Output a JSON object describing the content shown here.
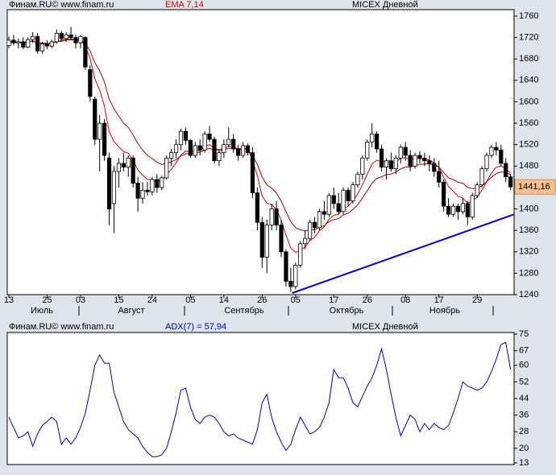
{
  "chart_data": [
    {
      "type": "candlestick",
      "source": "Финам.RU©  www.finam.ru",
      "indicator": "EMA 7,14",
      "instrument": "MICEX Дневной",
      "categories": [
        "13",
        null,
        null,
        null,
        null,
        null,
        null,
        null,
        "25",
        null,
        null,
        null,
        null,
        null,
        null,
        "03",
        null,
        null,
        null,
        null,
        null,
        null,
        null,
        "15",
        null,
        null,
        null,
        null,
        null,
        null,
        "24",
        null,
        null,
        null,
        null,
        null,
        null,
        null,
        "05",
        null,
        null,
        null,
        null,
        null,
        null,
        "14",
        null,
        null,
        null,
        null,
        null,
        null,
        null,
        "26",
        null,
        null,
        null,
        null,
        null,
        null,
        "05",
        null,
        null,
        null,
        null,
        null,
        null,
        null,
        "17",
        null,
        null,
        null,
        null,
        null,
        null,
        "26",
        null,
        null,
        null,
        null,
        null,
        null,
        null,
        "08",
        null,
        null,
        null,
        null,
        null,
        null,
        "17",
        null,
        null,
        null,
        null,
        null,
        null,
        null,
        "29",
        null,
        null,
        null,
        null,
        null,
        null,
        null
      ],
      "months": [
        "Июль",
        "Август",
        "Сентябрь",
        "Октябрь",
        "Ноябрь"
      ],
      "up_color": "#ffffff",
      "down_color": "#000000",
      "ohlc": [
        [
          1705,
          1722,
          1700,
          1715
        ],
        [
          1715,
          1725,
          1705,
          1710
        ],
        [
          1710,
          1718,
          1700,
          1712
        ],
        [
          1712,
          1720,
          1698,
          1702
        ],
        [
          1702,
          1720,
          1700,
          1716
        ],
        [
          1716,
          1730,
          1710,
          1722
        ],
        [
          1722,
          1728,
          1690,
          1695
        ],
        [
          1695,
          1712,
          1690,
          1708
        ],
        [
          1708,
          1715,
          1698,
          1704
        ],
        [
          1704,
          1716,
          1700,
          1712
        ],
        [
          1712,
          1735,
          1708,
          1728
        ],
        [
          1728,
          1732,
          1712,
          1718
        ],
        [
          1718,
          1730,
          1712,
          1725
        ],
        [
          1725,
          1740,
          1715,
          1720
        ],
        [
          1720,
          1726,
          1700,
          1710
        ],
        [
          1710,
          1725,
          1700,
          1722
        ],
        [
          1720,
          1722,
          1660,
          1665
        ],
        [
          1660,
          1668,
          1600,
          1610
        ],
        [
          1605,
          1610,
          1520,
          1530
        ],
        [
          1530,
          1575,
          1470,
          1560
        ],
        [
          1560,
          1568,
          1490,
          1500
        ],
        [
          1495,
          1505,
          1370,
          1400
        ],
        [
          1410,
          1480,
          1355,
          1470
        ],
        [
          1470,
          1495,
          1440,
          1485
        ],
        [
          1485,
          1505,
          1470,
          1478
        ],
        [
          1478,
          1500,
          1460,
          1495
        ],
        [
          1495,
          1500,
          1440,
          1448
        ],
        [
          1448,
          1460,
          1395,
          1420
        ],
        [
          1420,
          1450,
          1410,
          1435
        ],
        [
          1435,
          1450,
          1425,
          1432
        ],
        [
          1432,
          1460,
          1425,
          1455
        ],
        [
          1455,
          1465,
          1430,
          1440
        ],
        [
          1440,
          1462,
          1435,
          1458
        ],
        [
          1458,
          1500,
          1455,
          1495
        ],
        [
          1495,
          1512,
          1480,
          1505
        ],
        [
          1505,
          1530,
          1495,
          1520
        ],
        [
          1520,
          1550,
          1510,
          1545
        ],
        [
          1545,
          1552,
          1520,
          1528
        ],
        [
          1528,
          1530,
          1495,
          1500
        ],
        [
          1500,
          1525,
          1495,
          1518
        ],
        [
          1518,
          1530,
          1500,
          1510
        ],
        [
          1510,
          1545,
          1505,
          1540
        ],
        [
          1540,
          1555,
          1525,
          1530
        ],
        [
          1530,
          1535,
          1485,
          1490
        ],
        [
          1490,
          1510,
          1480,
          1505
        ],
        [
          1505,
          1530,
          1495,
          1520
        ],
        [
          1520,
          1552,
          1515,
          1530
        ],
        [
          1530,
          1540,
          1505,
          1512
        ],
        [
          1512,
          1520,
          1490,
          1500
        ],
        [
          1500,
          1525,
          1495,
          1518
        ],
        [
          1518,
          1522,
          1500,
          1505
        ],
        [
          1505,
          1515,
          1420,
          1430
        ],
        [
          1430,
          1440,
          1360,
          1375
        ],
        [
          1375,
          1385,
          1290,
          1310
        ],
        [
          1310,
          1380,
          1280,
          1370
        ],
        [
          1370,
          1410,
          1360,
          1400
        ],
        [
          1400,
          1415,
          1360,
          1370
        ],
        [
          1370,
          1380,
          1310,
          1320
        ],
        [
          1320,
          1325,
          1255,
          1265
        ],
        [
          1265,
          1290,
          1245,
          1255
        ],
        [
          1255,
          1300,
          1250,
          1295
        ],
        [
          1295,
          1340,
          1290,
          1335
        ],
        [
          1335,
          1360,
          1325,
          1345
        ],
        [
          1345,
          1380,
          1340,
          1375
        ],
        [
          1375,
          1385,
          1355,
          1365
        ],
        [
          1365,
          1400,
          1360,
          1395
        ],
        [
          1395,
          1415,
          1380,
          1390
        ],
        [
          1390,
          1430,
          1385,
          1425
        ],
        [
          1425,
          1440,
          1400,
          1410
        ],
        [
          1410,
          1430,
          1390,
          1395
        ],
        [
          1395,
          1440,
          1390,
          1435
        ],
        [
          1435,
          1440,
          1405,
          1415
        ],
        [
          1415,
          1450,
          1410,
          1445
        ],
        [
          1445,
          1470,
          1440,
          1465
        ],
        [
          1465,
          1500,
          1455,
          1495
        ],
        [
          1495,
          1530,
          1490,
          1525
        ],
        [
          1525,
          1560,
          1515,
          1540
        ],
        [
          1540,
          1545,
          1505,
          1512
        ],
        [
          1512,
          1520,
          1470,
          1478
        ],
        [
          1478,
          1495,
          1455,
          1490
        ],
        [
          1490,
          1505,
          1470,
          1475
        ],
        [
          1475,
          1500,
          1465,
          1495
        ],
        [
          1495,
          1520,
          1485,
          1515
        ],
        [
          1515,
          1525,
          1490,
          1500
        ],
        [
          1500,
          1510,
          1470,
          1480
        ],
        [
          1480,
          1505,
          1475,
          1500
        ],
        [
          1500,
          1508,
          1485,
          1495
        ],
        [
          1495,
          1505,
          1480,
          1490
        ],
        [
          1490,
          1500,
          1470,
          1485
        ],
        [
          1485,
          1495,
          1460,
          1470
        ],
        [
          1470,
          1490,
          1440,
          1450
        ],
        [
          1450,
          1455,
          1395,
          1405
        ],
        [
          1405,
          1420,
          1385,
          1390
        ],
        [
          1390,
          1410,
          1385,
          1405
        ],
        [
          1405,
          1410,
          1380,
          1395
        ],
        [
          1395,
          1420,
          1390,
          1410
        ],
        [
          1410,
          1415,
          1370,
          1385
        ],
        [
          1385,
          1430,
          1380,
          1425
        ],
        [
          1425,
          1450,
          1420,
          1445
        ],
        [
          1445,
          1480,
          1440,
          1475
        ],
        [
          1475,
          1505,
          1470,
          1500
        ],
        [
          1500,
          1520,
          1495,
          1515
        ],
        [
          1515,
          1525,
          1500,
          1510
        ],
        [
          1510,
          1520,
          1480,
          1485
        ],
        [
          1485,
          1495,
          1450,
          1460
        ],
        [
          1460,
          1465,
          1435,
          1441.16
        ]
      ],
      "series": [
        {
          "color": "#dd0000",
          "values": [
            1712,
            1711,
            1711,
            1709,
            1711,
            1714,
            1709,
            1709,
            1708,
            1709,
            1714,
            1715,
            1717,
            1718,
            1716,
            1717,
            1704,
            1681,
            1643,
            1622,
            1592,
            1544,
            1526,
            1516,
            1507,
            1504,
            1490,
            1473,
            1463,
            1455,
            1455,
            1451,
            1453,
            1464,
            1474,
            1486,
            1501,
            1508,
            1506,
            1509,
            1509,
            1517,
            1520,
            1513,
            1511,
            1513,
            1517,
            1516,
            1512,
            1514,
            1512,
            1491,
            1462,
            1424,
            1411,
            1408,
            1399,
            1379,
            1351,
            1327,
            1319,
            1323,
            1329,
            1341,
            1347,
            1359,
            1367,
            1381,
            1388,
            1390,
            1401,
            1405,
            1415,
            1428,
            1445,
            1465,
            1484,
            1491,
            1488,
            1489,
            1485,
            1488,
            1495,
            1496,
            1492,
            1494,
            1494,
            1493,
            1491,
            1486,
            1477,
            1459,
            1442,
            1433,
            1424,
            1420,
            1411,
            1415,
            1422,
            1435,
            1451,
            1467,
            1478,
            1480,
            1475,
            1467
          ]
        },
        {
          "color": "#aa0000",
          "values": [
            1712,
            1712,
            1712,
            1711,
            1712,
            1713,
            1710,
            1710,
            1709,
            1709,
            1712,
            1713,
            1715,
            1716,
            1715,
            1716,
            1709,
            1695,
            1673,
            1658,
            1637,
            1605,
            1587,
            1573,
            1560,
            1552,
            1538,
            1522,
            1510,
            1500,
            1494,
            1487,
            1483,
            1485,
            1488,
            1492,
            1499,
            1503,
            1503,
            1505,
            1506,
            1510,
            1513,
            1510,
            1509,
            1511,
            1513,
            1513,
            1511,
            1512,
            1511,
            1500,
            1483,
            1460,
            1445,
            1439,
            1430,
            1415,
            1395,
            1376,
            1365,
            1361,
            1359,
            1361,
            1361,
            1366,
            1369,
            1376,
            1380,
            1382,
            1389,
            1392,
            1399,
            1408,
            1420,
            1434,
            1448,
            1457,
            1460,
            1464,
            1465,
            1469,
            1475,
            1478,
            1478,
            1481,
            1483,
            1484,
            1484,
            1482,
            1478,
            1468,
            1458,
            1455,
            1450,
            1448,
            1440,
            1438,
            1439,
            1443,
            1451,
            1459,
            1466,
            1469,
            1468,
            1464
          ]
        }
      ],
      "trendline": {
        "color": "#0000cc",
        "x": [
          59.3,
          106.4
        ],
        "values": [
          1243,
          1392
        ]
      },
      "last_label": "1441,16",
      "ylim": [
        1240,
        1772
      ],
      "yticks": [
        1240,
        1280,
        1320,
        1360,
        1400,
        1440,
        1480,
        1520,
        1560,
        1600,
        1640,
        1680,
        1720,
        1760
      ]
    },
    {
      "type": "line",
      "source": "Финам.RU©  www.finam.ru",
      "indicator": "ADX(7) = 57,94",
      "instrument": "MICEX Дневной",
      "color": "#0000bb",
      "values": [
        35,
        30,
        25,
        26,
        28,
        21,
        27,
        31,
        33,
        35,
        33,
        22,
        25,
        22,
        25,
        30,
        37,
        48,
        60,
        65,
        61,
        61,
        47,
        40,
        33,
        29,
        27,
        25,
        21,
        18,
        16,
        16,
        17,
        20,
        28,
        37,
        48,
        49,
        40,
        34,
        32,
        35,
        36,
        35,
        32,
        28,
        26,
        27,
        25,
        24,
        23,
        22,
        29,
        42,
        46,
        35,
        28,
        23,
        19,
        22,
        29,
        35,
        31,
        27,
        28,
        30,
        35,
        42,
        58,
        54,
        54,
        49,
        42,
        40,
        45,
        50,
        54,
        60,
        68,
        58,
        46,
        35,
        26,
        31,
        36,
        34,
        28,
        32,
        29,
        32,
        30,
        29,
        31,
        37,
        44,
        52,
        50,
        49,
        48,
        49,
        52,
        57,
        63,
        70,
        71,
        57.94
      ],
      "ylim": [
        13,
        75
      ],
      "yticks": [
        75,
        67,
        60,
        52,
        44,
        36,
        28,
        20,
        13
      ]
    }
  ]
}
